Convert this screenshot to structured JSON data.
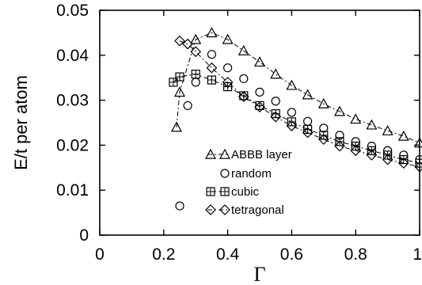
{
  "chart_data": {
    "type": "scatter",
    "xlabel": "Γ",
    "ylabel": "E/t per atom",
    "xlim": [
      0,
      1
    ],
    "ylim": [
      0,
      0.05
    ],
    "x_ticks": [
      "0",
      "0.2",
      "0.4",
      "0.6",
      "0.8",
      "1"
    ],
    "y_ticks": [
      "0",
      "0.01",
      "0.02",
      "0.03",
      "0.04",
      "0.05"
    ],
    "grid": false,
    "legend_position": "lower-center",
    "series": [
      {
        "name": "ABBB layer",
        "marker": "triangle",
        "dashed_line": true,
        "x": [
          0.24,
          0.25,
          0.3,
          0.35,
          0.4,
          0.45,
          0.5,
          0.55,
          0.6,
          0.65,
          0.7,
          0.75,
          0.8,
          0.85,
          0.9,
          0.95,
          1.0
        ],
        "y": [
          0.024,
          0.0318,
          0.0435,
          0.045,
          0.0435,
          0.041,
          0.0385,
          0.0358,
          0.0333,
          0.0312,
          0.0292,
          0.0275,
          0.0258,
          0.0245,
          0.0232,
          0.022,
          0.0205
        ]
      },
      {
        "name": "random",
        "marker": "circle",
        "dashed_line": false,
        "x": [
          0.25,
          0.275,
          0.3,
          0.35,
          0.4,
          0.45,
          0.5,
          0.55,
          0.6,
          0.65,
          0.7,
          0.75,
          0.8,
          0.85,
          0.9,
          0.95,
          1.0
        ],
        "y": [
          0.0065,
          0.0288,
          0.034,
          0.0402,
          0.0372,
          0.0348,
          0.0318,
          0.0298,
          0.0273,
          0.0253,
          0.0238,
          0.0222,
          0.0208,
          0.0198,
          0.0188,
          0.0178,
          0.0168
        ]
      },
      {
        "name": "cubic",
        "marker": "square-plus",
        "dashed_line": true,
        "x": [
          0.23,
          0.25,
          0.3,
          0.35,
          0.4,
          0.45,
          0.5,
          0.55,
          0.6,
          0.65,
          0.7,
          0.75,
          0.8,
          0.85,
          0.9,
          0.95,
          1.0
        ],
        "y": [
          0.034,
          0.0352,
          0.0358,
          0.0345,
          0.033,
          0.031,
          0.0288,
          0.027,
          0.0252,
          0.0235,
          0.0222,
          0.0208,
          0.0198,
          0.0188,
          0.0178,
          0.0168,
          0.016
        ]
      },
      {
        "name": "tetragonal",
        "marker": "diamond",
        "dashed_line": true,
        "x": [
          0.25,
          0.275,
          0.3,
          0.35,
          0.4,
          0.45,
          0.5,
          0.55,
          0.6,
          0.65,
          0.7,
          0.75,
          0.8,
          0.85,
          0.9,
          0.95,
          1.0
        ],
        "y": [
          0.0432,
          0.0425,
          0.0408,
          0.0372,
          0.034,
          0.0308,
          0.0285,
          0.0263,
          0.0243,
          0.0228,
          0.0213,
          0.0198,
          0.0188,
          0.0178,
          0.0168,
          0.016,
          0.0152
        ]
      }
    ]
  }
}
